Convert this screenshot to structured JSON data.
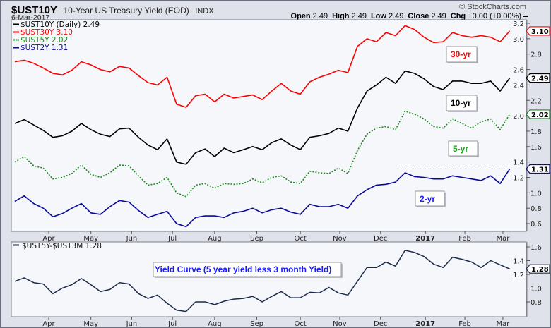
{
  "header": {
    "symbol": "$UST10Y",
    "title": "10-Year US Treasury Yield (EOD)",
    "exchange": "INDX",
    "date": "6-Mar-2017",
    "copyright": "© StockCharts.com",
    "ohlc": [
      {
        "label": "Open",
        "value": "2.49"
      },
      {
        "label": "High",
        "value": "2.49"
      },
      {
        "label": "Low",
        "value": "2.49"
      },
      {
        "label": "Close",
        "value": "2.49"
      },
      {
        "label": "Chg",
        "value": "+0.00 (+0.00%)"
      }
    ]
  },
  "colors": {
    "ust10y": "#000000",
    "ust30y": "#ff0000",
    "ust5y": "#1a8a1a",
    "ust2y": "#0a0a9a",
    "spread": "#1c2a4a",
    "annotation_blue": "#1a1aff",
    "frame": "#dfe2ea",
    "plot_bg": "#f5f7fb"
  },
  "chart_data": [
    {
      "type": "line",
      "panel": "main",
      "legend": [
        {
          "key": "ust10y",
          "label": "$UST10Y (Daily) 2.49",
          "style": "solid"
        },
        {
          "key": "ust30y",
          "label": "$UST30Y 3.10",
          "style": "solid"
        },
        {
          "key": "ust5y",
          "label": "$UST5Y 2.02",
          "style": "dotted"
        },
        {
          "key": "ust2y",
          "label": "$UST2Y 1.31",
          "style": "solid"
        }
      ],
      "legend_placement": "top-left",
      "ylim": [
        0.5,
        3.25
      ],
      "yticks": [
        "3.2",
        "3.0",
        "2.8",
        "2.6",
        "2.4",
        "2.2",
        "2.0",
        "1.8",
        "1.6",
        "1.4",
        "1.2",
        "1.0",
        "0.8",
        "0.6"
      ],
      "y_axis_side": "right",
      "x_ticks": [
        {
          "date": "2016-04-01",
          "label": "Apr"
        },
        {
          "date": "2016-05-02",
          "label": "May"
        },
        {
          "date": "2016-06-01",
          "label": "Jun"
        },
        {
          "date": "2016-07-01",
          "label": "Jul"
        },
        {
          "date": "2016-08-01",
          "label": "Aug"
        },
        {
          "date": "2016-09-01",
          "label": "Sep"
        },
        {
          "date": "2016-10-03",
          "label": "Oct"
        },
        {
          "date": "2016-11-01",
          "label": "Nov"
        },
        {
          "date": "2016-12-01",
          "label": "Dec"
        },
        {
          "date": "2017-01-03",
          "label": "2017",
          "bold": true
        },
        {
          "date": "2017-02-01",
          "label": "Feb"
        },
        {
          "date": "2017-03-01",
          "label": "Mar"
        }
      ],
      "x": [
        "2016-03-07",
        "2016-03-14",
        "2016-03-21",
        "2016-03-28",
        "2016-04-04",
        "2016-04-11",
        "2016-04-18",
        "2016-04-25",
        "2016-05-02",
        "2016-05-09",
        "2016-05-16",
        "2016-05-23",
        "2016-05-30",
        "2016-06-06",
        "2016-06-13",
        "2016-06-20",
        "2016-06-27",
        "2016-07-04",
        "2016-07-11",
        "2016-07-18",
        "2016-07-25",
        "2016-08-01",
        "2016-08-08",
        "2016-08-15",
        "2016-08-22",
        "2016-08-29",
        "2016-09-05",
        "2016-09-12",
        "2016-09-19",
        "2016-09-26",
        "2016-10-03",
        "2016-10-10",
        "2016-10-17",
        "2016-10-24",
        "2016-10-31",
        "2016-11-07",
        "2016-11-14",
        "2016-11-21",
        "2016-11-28",
        "2016-12-05",
        "2016-12-12",
        "2016-12-19",
        "2016-12-26",
        "2017-01-02",
        "2017-01-09",
        "2017-01-16",
        "2017-01-23",
        "2017-01-30",
        "2017-02-06",
        "2017-02-13",
        "2017-02-20",
        "2017-02-27",
        "2017-03-06"
      ],
      "series": [
        {
          "key": "ust30y",
          "name": "$UST30Y",
          "last": "3.10",
          "values": [
            2.7,
            2.72,
            2.68,
            2.62,
            2.55,
            2.53,
            2.59,
            2.7,
            2.66,
            2.6,
            2.57,
            2.64,
            2.62,
            2.52,
            2.43,
            2.4,
            2.5,
            2.15,
            2.11,
            2.26,
            2.28,
            2.18,
            2.28,
            2.23,
            2.25,
            2.27,
            2.21,
            2.32,
            2.42,
            2.32,
            2.28,
            2.44,
            2.5,
            2.54,
            2.59,
            2.56,
            2.9,
            3.0,
            2.96,
            3.08,
            3.04,
            3.17,
            3.12,
            3.02,
            2.95,
            2.96,
            3.08,
            3.04,
            3.02,
            3.04,
            3.02,
            2.96,
            3.1
          ]
        },
        {
          "key": "ust10y",
          "name": "$UST10Y",
          "last": "2.49",
          "values": [
            1.9,
            1.95,
            1.88,
            1.81,
            1.72,
            1.74,
            1.8,
            1.9,
            1.82,
            1.76,
            1.73,
            1.83,
            1.84,
            1.72,
            1.62,
            1.56,
            1.7,
            1.4,
            1.37,
            1.52,
            1.57,
            1.47,
            1.58,
            1.52,
            1.56,
            1.6,
            1.56,
            1.65,
            1.7,
            1.62,
            1.56,
            1.72,
            1.74,
            1.77,
            1.84,
            1.8,
            2.1,
            2.32,
            2.4,
            2.5,
            2.42,
            2.58,
            2.55,
            2.48,
            2.38,
            2.34,
            2.45,
            2.45,
            2.42,
            2.42,
            2.45,
            2.32,
            2.49
          ]
        },
        {
          "key": "ust5y",
          "name": "$UST5Y",
          "last": "2.02",
          "values": [
            1.4,
            1.47,
            1.35,
            1.32,
            1.18,
            1.2,
            1.25,
            1.36,
            1.24,
            1.2,
            1.26,
            1.36,
            1.35,
            1.22,
            1.1,
            1.12,
            1.2,
            1.0,
            0.95,
            1.1,
            1.12,
            1.06,
            1.12,
            1.11,
            1.12,
            1.18,
            1.13,
            1.2,
            1.22,
            1.14,
            1.12,
            1.28,
            1.26,
            1.25,
            1.32,
            1.25,
            1.55,
            1.76,
            1.84,
            1.86,
            1.82,
            2.06,
            2.02,
            1.96,
            1.86,
            1.84,
            1.96,
            1.9,
            1.84,
            1.92,
            1.96,
            1.82,
            2.02
          ]
        },
        {
          "key": "ust2y",
          "name": "$UST2Y",
          "last": "1.31",
          "values": [
            0.89,
            0.96,
            0.86,
            0.8,
            0.69,
            0.73,
            0.8,
            0.86,
            0.74,
            0.72,
            0.82,
            0.9,
            0.88,
            0.77,
            0.68,
            0.72,
            0.76,
            0.6,
            0.56,
            0.68,
            0.7,
            0.7,
            0.68,
            0.74,
            0.76,
            0.8,
            0.74,
            0.78,
            0.8,
            0.75,
            0.72,
            0.85,
            0.82,
            0.82,
            0.85,
            0.8,
            0.96,
            1.04,
            1.1,
            1.11,
            1.14,
            1.26,
            1.21,
            1.2,
            1.18,
            1.18,
            1.22,
            1.2,
            1.18,
            1.16,
            1.22,
            1.12,
            1.31
          ]
        }
      ],
      "reference_line": {
        "value": 1.31,
        "from": "2016-12-14",
        "to": "2017-03-06",
        "style": "dashed"
      },
      "annotations": [
        {
          "key": "ust30y",
          "text": "30-yr"
        },
        {
          "key": "ust10y",
          "text": "10-yr"
        },
        {
          "key": "ust5y",
          "text": "5-yr"
        },
        {
          "key": "ust2y",
          "text": "2-yr"
        }
      ]
    },
    {
      "type": "line",
      "panel": "lower",
      "legend": [
        {
          "key": "spread",
          "label": "$UST5Y-$UST3M 1.28",
          "style": "solid"
        }
      ],
      "annotation": "Yield Curve (5 year yield less 3 month Yield)",
      "ylim": [
        0.6,
        1.65
      ],
      "yticks": [
        "1.6",
        "1.4",
        "1.2",
        "1.0",
        "0.8"
      ],
      "series": [
        {
          "key": "spread",
          "name": "$UST5Y-$UST3M",
          "last": "1.28",
          "values": [
            1.1,
            1.15,
            1.08,
            1.06,
            0.92,
            1.0,
            1.05,
            1.14,
            1.05,
            0.95,
            0.98,
            1.08,
            1.06,
            0.92,
            0.85,
            0.9,
            0.78,
            0.68,
            0.66,
            0.8,
            0.8,
            0.76,
            0.81,
            0.84,
            0.85,
            0.88,
            0.8,
            0.88,
            0.95,
            0.86,
            0.86,
            0.94,
            0.93,
            1.01,
            0.93,
            0.9,
            1.1,
            1.3,
            1.3,
            1.38,
            1.32,
            1.55,
            1.52,
            1.46,
            1.35,
            1.3,
            1.45,
            1.42,
            1.38,
            1.3,
            1.4,
            1.34,
            1.28
          ]
        }
      ]
    }
  ]
}
